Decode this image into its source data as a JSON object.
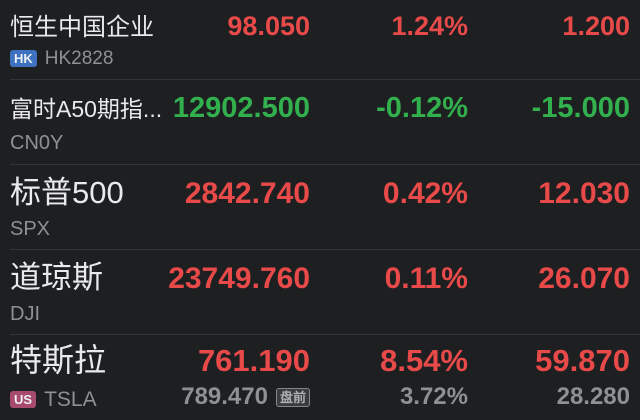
{
  "app": {
    "view": "股票自选列表 (stock watchlist)"
  },
  "colors": {
    "background": "#1e1f21",
    "divider": "#323336",
    "name_text": "#e9eaec",
    "code_text": "#8f9094",
    "up_red": "#e84a4a",
    "down_green": "#32b04e",
    "hk_badge_bg": "#3e72c0",
    "us_badge_bg": "#a84a6c",
    "premarket_tag_border": "#86878b"
  },
  "watchlist": {
    "rows": [
      {
        "name": "恒生中国企业",
        "market_badge": "HK",
        "code": "HK2828",
        "price": "98.050",
        "change_pct": "1.24%",
        "change_abs": "1.200",
        "trend": "up"
      },
      {
        "name": "富时A50期指...",
        "market_badge": "",
        "code": "CN0Y",
        "price": "12902.500",
        "change_pct": "-0.12%",
        "change_abs": "-15.000",
        "trend": "down"
      },
      {
        "name": "标普500",
        "market_badge": "",
        "code": "SPX",
        "price": "2842.740",
        "change_pct": "0.42%",
        "change_abs": "12.030",
        "trend": "up"
      },
      {
        "name": "道琼斯",
        "market_badge": "",
        "code": "DJI",
        "price": "23749.760",
        "change_pct": "0.11%",
        "change_abs": "26.070",
        "trend": "up"
      },
      {
        "name": "特斯拉",
        "market_badge": "US",
        "code": "TSLA",
        "price": "761.190",
        "change_pct": "8.54%",
        "change_abs": "59.870",
        "trend": "up",
        "premarket": {
          "label": "盘前",
          "price": "789.470",
          "change_pct": "3.72%",
          "change_abs": "28.280"
        }
      }
    ]
  }
}
